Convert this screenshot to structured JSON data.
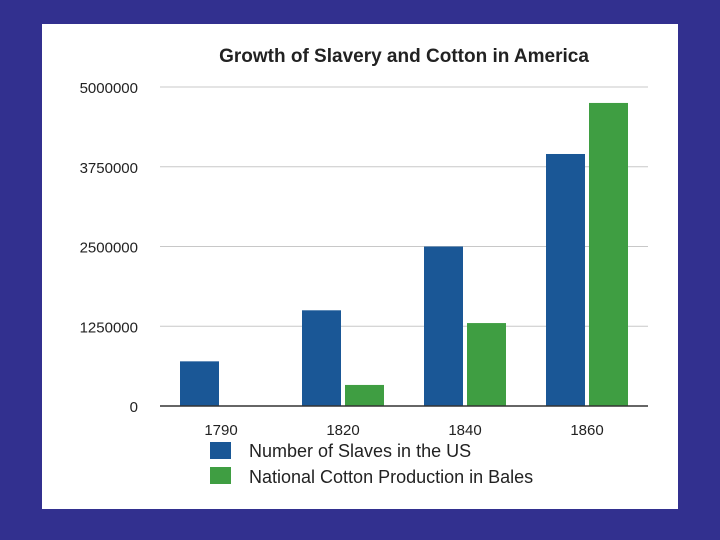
{
  "colors": {
    "background": "#32308f",
    "panel": "#ffffff",
    "series_1": "#1a5796",
    "series_2": "#3f9e42",
    "grid": "#c8c8c8",
    "axis": "#333333",
    "text": "#222222"
  },
  "chart_data": {
    "type": "bar",
    "title": "Growth of Slavery and Cotton in America",
    "xlabel": "",
    "ylabel": "",
    "categories": [
      "1790",
      "1820",
      "1840",
      "1860"
    ],
    "series": [
      {
        "name": "Number of Slaves in the US",
        "values": [
          700000,
          1500000,
          2500000,
          3950000
        ]
      },
      {
        "name": "National Cotton Production in Bales",
        "values": [
          0,
          330000,
          1300000,
          4750000
        ]
      }
    ],
    "ylim": [
      0,
      5000000
    ],
    "yticks": [
      "0",
      "1250000",
      "2500000",
      "3750000",
      "5000000"
    ],
    "grid": true,
    "legend": "bottom"
  }
}
